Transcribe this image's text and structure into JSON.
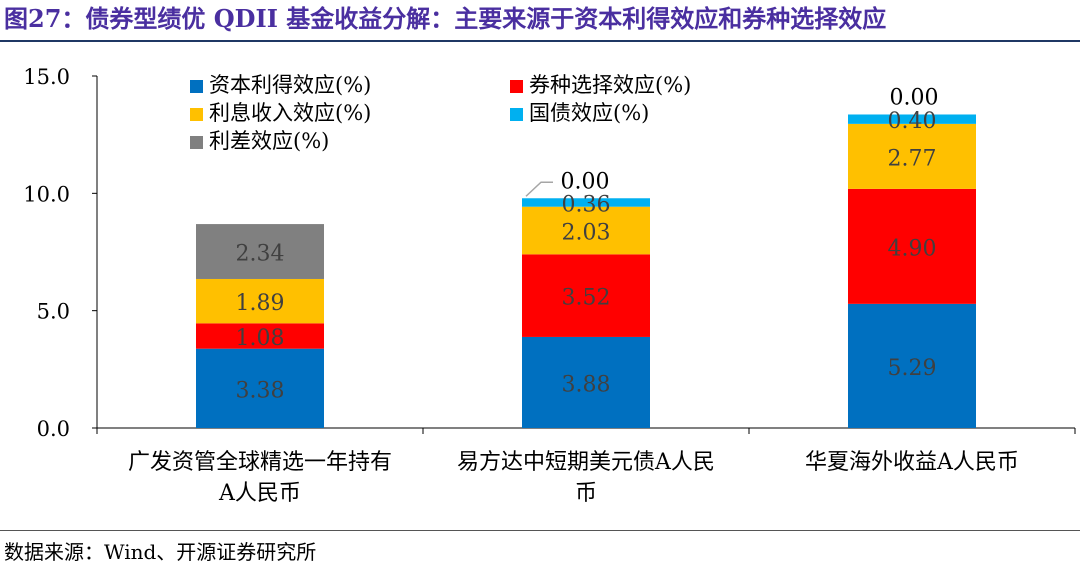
{
  "figure": {
    "title": "图27：债券型绩优 QDII 基金收益分解：主要来源于资本利得效应和券种选择效应",
    "source": "数据来源：Wind、开源证券研究所"
  },
  "chart_data": {
    "type": "bar",
    "stacked": true,
    "ylim": [
      0,
      15
    ],
    "yticks": [
      "0.0",
      "5.0",
      "10.0",
      "15.0"
    ],
    "categories": [
      [
        "广发资管全球精选一年持有",
        "A人民币"
      ],
      [
        "易方达中短期美元债A人民",
        "币"
      ],
      [
        "华夏海外收益A人民币"
      ]
    ],
    "series": [
      {
        "name": "资本利得效应(%)",
        "color": "#0070c0",
        "values": [
          3.38,
          3.88,
          5.29
        ],
        "labels": [
          "3.38",
          "3.88",
          "5.29"
        ]
      },
      {
        "name": "券种选择效应(%)",
        "color": "#ff0000",
        "values": [
          1.08,
          3.52,
          4.9
        ],
        "labels": [
          "1.08",
          "3.52",
          "4.90"
        ]
      },
      {
        "name": "利息收入效应(%)",
        "color": "#ffc000",
        "values": [
          1.89,
          2.03,
          2.77
        ],
        "labels": [
          "1.89",
          "2.03",
          "2.77"
        ]
      },
      {
        "name": "国债效应(%)",
        "color": "#00b0f0",
        "values": [
          0.0,
          0.36,
          0.4
        ],
        "labels": [
          "",
          "0.36",
          "0.40"
        ]
      },
      {
        "name": "利差效应(%)",
        "color": "#808080",
        "values": [
          2.34,
          0.0,
          0.0
        ],
        "labels": [
          "2.34",
          "0.00",
          "0.00"
        ]
      }
    ],
    "legend_position": "top",
    "grid": false
  }
}
